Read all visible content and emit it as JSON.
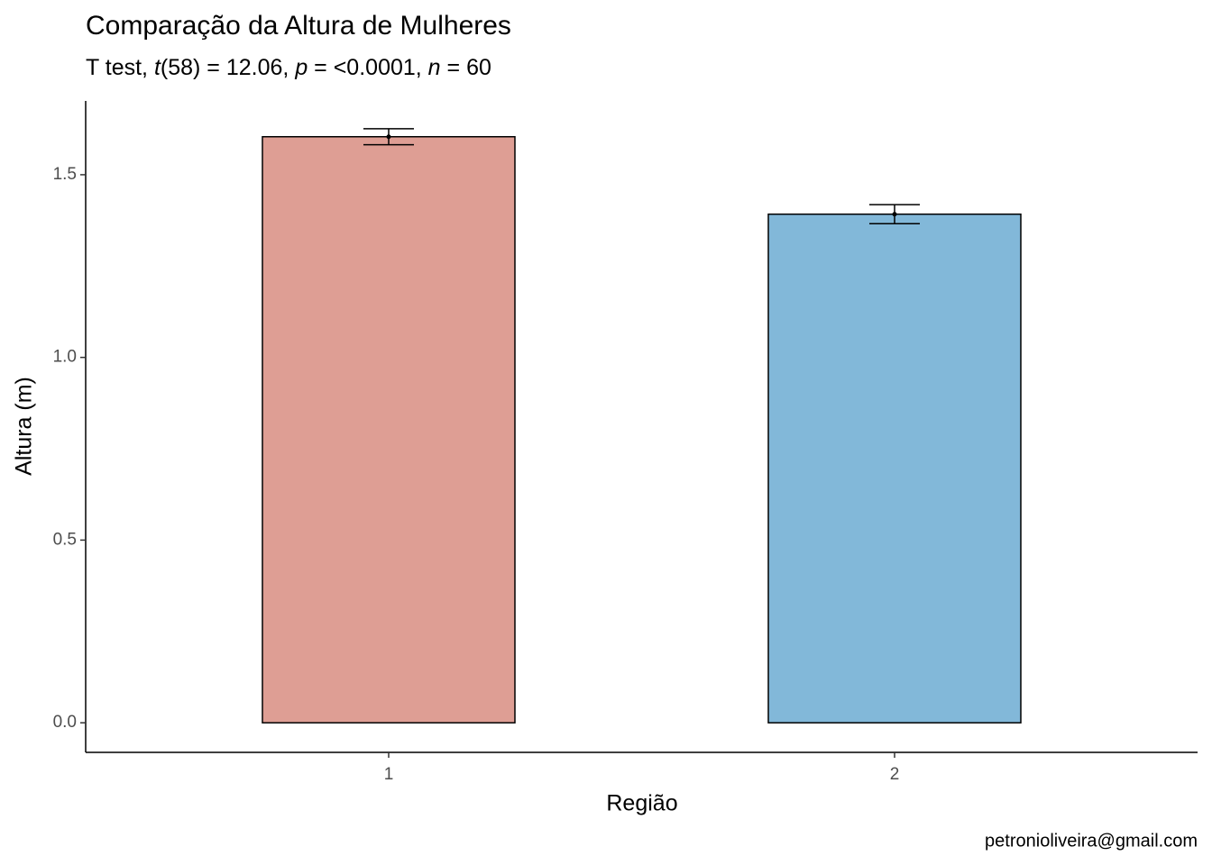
{
  "chart_data": {
    "type": "bar",
    "title": "Comparação da Altura de Mulheres",
    "subtitle": [
      "T test, ",
      "t",
      "(58) = 12.06, ",
      "p",
      " = <0.0001, ",
      "n",
      " = 60"
    ],
    "x_label": "Região",
    "y_label": "Altura (m)",
    "caption": "petronioliveira@gmail.com",
    "categories": [
      "1",
      "2"
    ],
    "values": [
      1.604,
      1.392
    ],
    "errors": [
      0.022,
      0.026
    ],
    "colors": [
      "#de9e94",
      "#82b8d9"
    ],
    "ylim": [
      -0.081,
      1.702
    ],
    "yticks": [
      {
        "value": 0,
        "label": "0.0"
      },
      {
        "value": 0.5,
        "label": "0.5"
      },
      {
        "value": 1,
        "label": "1.0"
      },
      {
        "value": 1.5,
        "label": "1.5"
      }
    ],
    "grid": false
  }
}
